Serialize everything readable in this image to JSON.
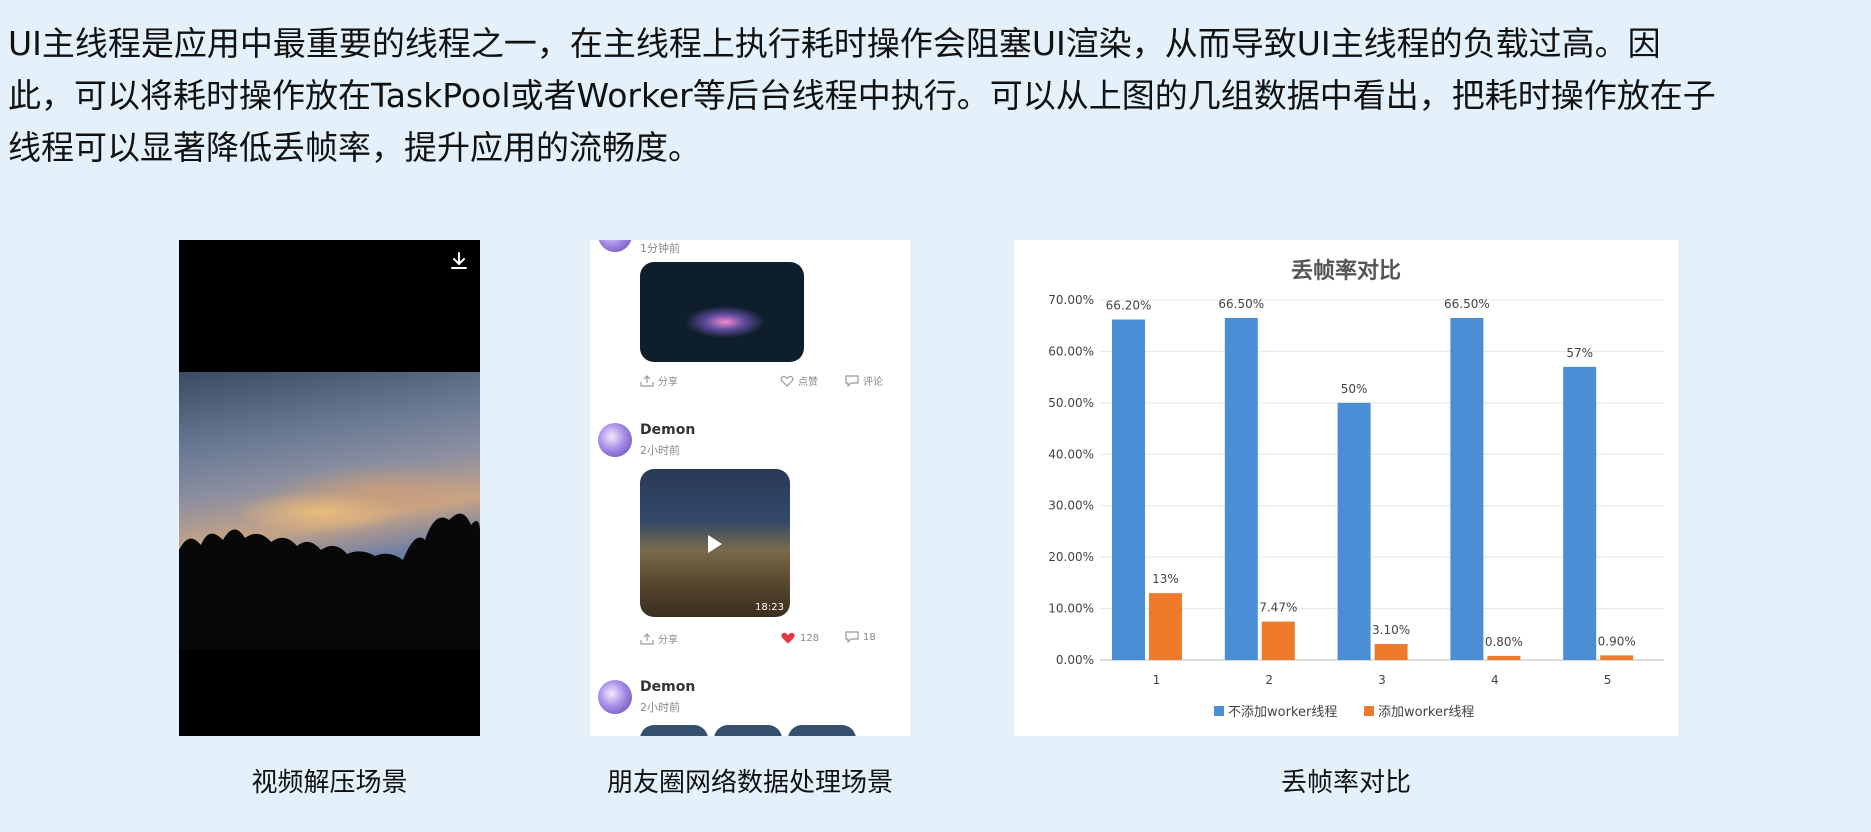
{
  "paragraph": {
    "line1": "UI主线程是应用中最重要的线程之一，在主线程上执行耗时操作会阻塞UI渲染，从而导致UI主线程的负载过高。因",
    "line2": "此，可以将耗时操作放在TaskPool或者Worker等后台线程中执行。可以从上图的几组数据中看出，把耗时操作放在子",
    "line3": "线程可以显著降低丢帧率，提升应用的流畅度。"
  },
  "captions": {
    "video": "视频解压场景",
    "feed": "朋友圈网络数据处理场景",
    "chart": "丢帧率对比"
  },
  "feed": {
    "post0_time": "1分钟前",
    "post1_share": "分享",
    "post1_like": "点赞",
    "post1_comment": "评论",
    "post2_name": "Demon",
    "post2_time": "2小时前",
    "post2_duration": "18:23",
    "post2_share": "分享",
    "post2_likes": "128",
    "post2_comments": "18",
    "post3_name": "Demon",
    "post3_time": "2小时前"
  },
  "chart_data": {
    "type": "bar",
    "title": "丢帧率对比",
    "categories": [
      "1",
      "2",
      "3",
      "4",
      "5"
    ],
    "series": [
      {
        "name": "不添加worker线程",
        "color": "#4a8fd6",
        "values": [
          66.2,
          66.5,
          50,
          66.5,
          57
        ],
        "labels": [
          "66.20%",
          "66.50%",
          "50%",
          "66.50%",
          "57%"
        ]
      },
      {
        "name": "添加worker线程",
        "color": "#ef7a2c",
        "values": [
          13,
          7.47,
          3.1,
          0.8,
          0.9
        ],
        "labels": [
          "13%",
          "7.47%",
          "3.10%",
          "0.80%",
          "0.90%"
        ]
      }
    ],
    "yticks": [
      "0.00%",
      "10.00%",
      "20.00%",
      "30.00%",
      "40.00%",
      "50.00%",
      "60.00%",
      "70.00%"
    ],
    "ylim": [
      0,
      70
    ],
    "legend": "bottom",
    "grid": true
  },
  "icons": {
    "video_download": "download-icon",
    "share": "share-icon",
    "like": "heart-icon",
    "comment": "comment-icon",
    "play": "play-icon"
  },
  "colors": {
    "background": "#e4f0fa",
    "series1": "#4a8fd6",
    "series2": "#ef7a2c",
    "like_red": "#e53945"
  }
}
